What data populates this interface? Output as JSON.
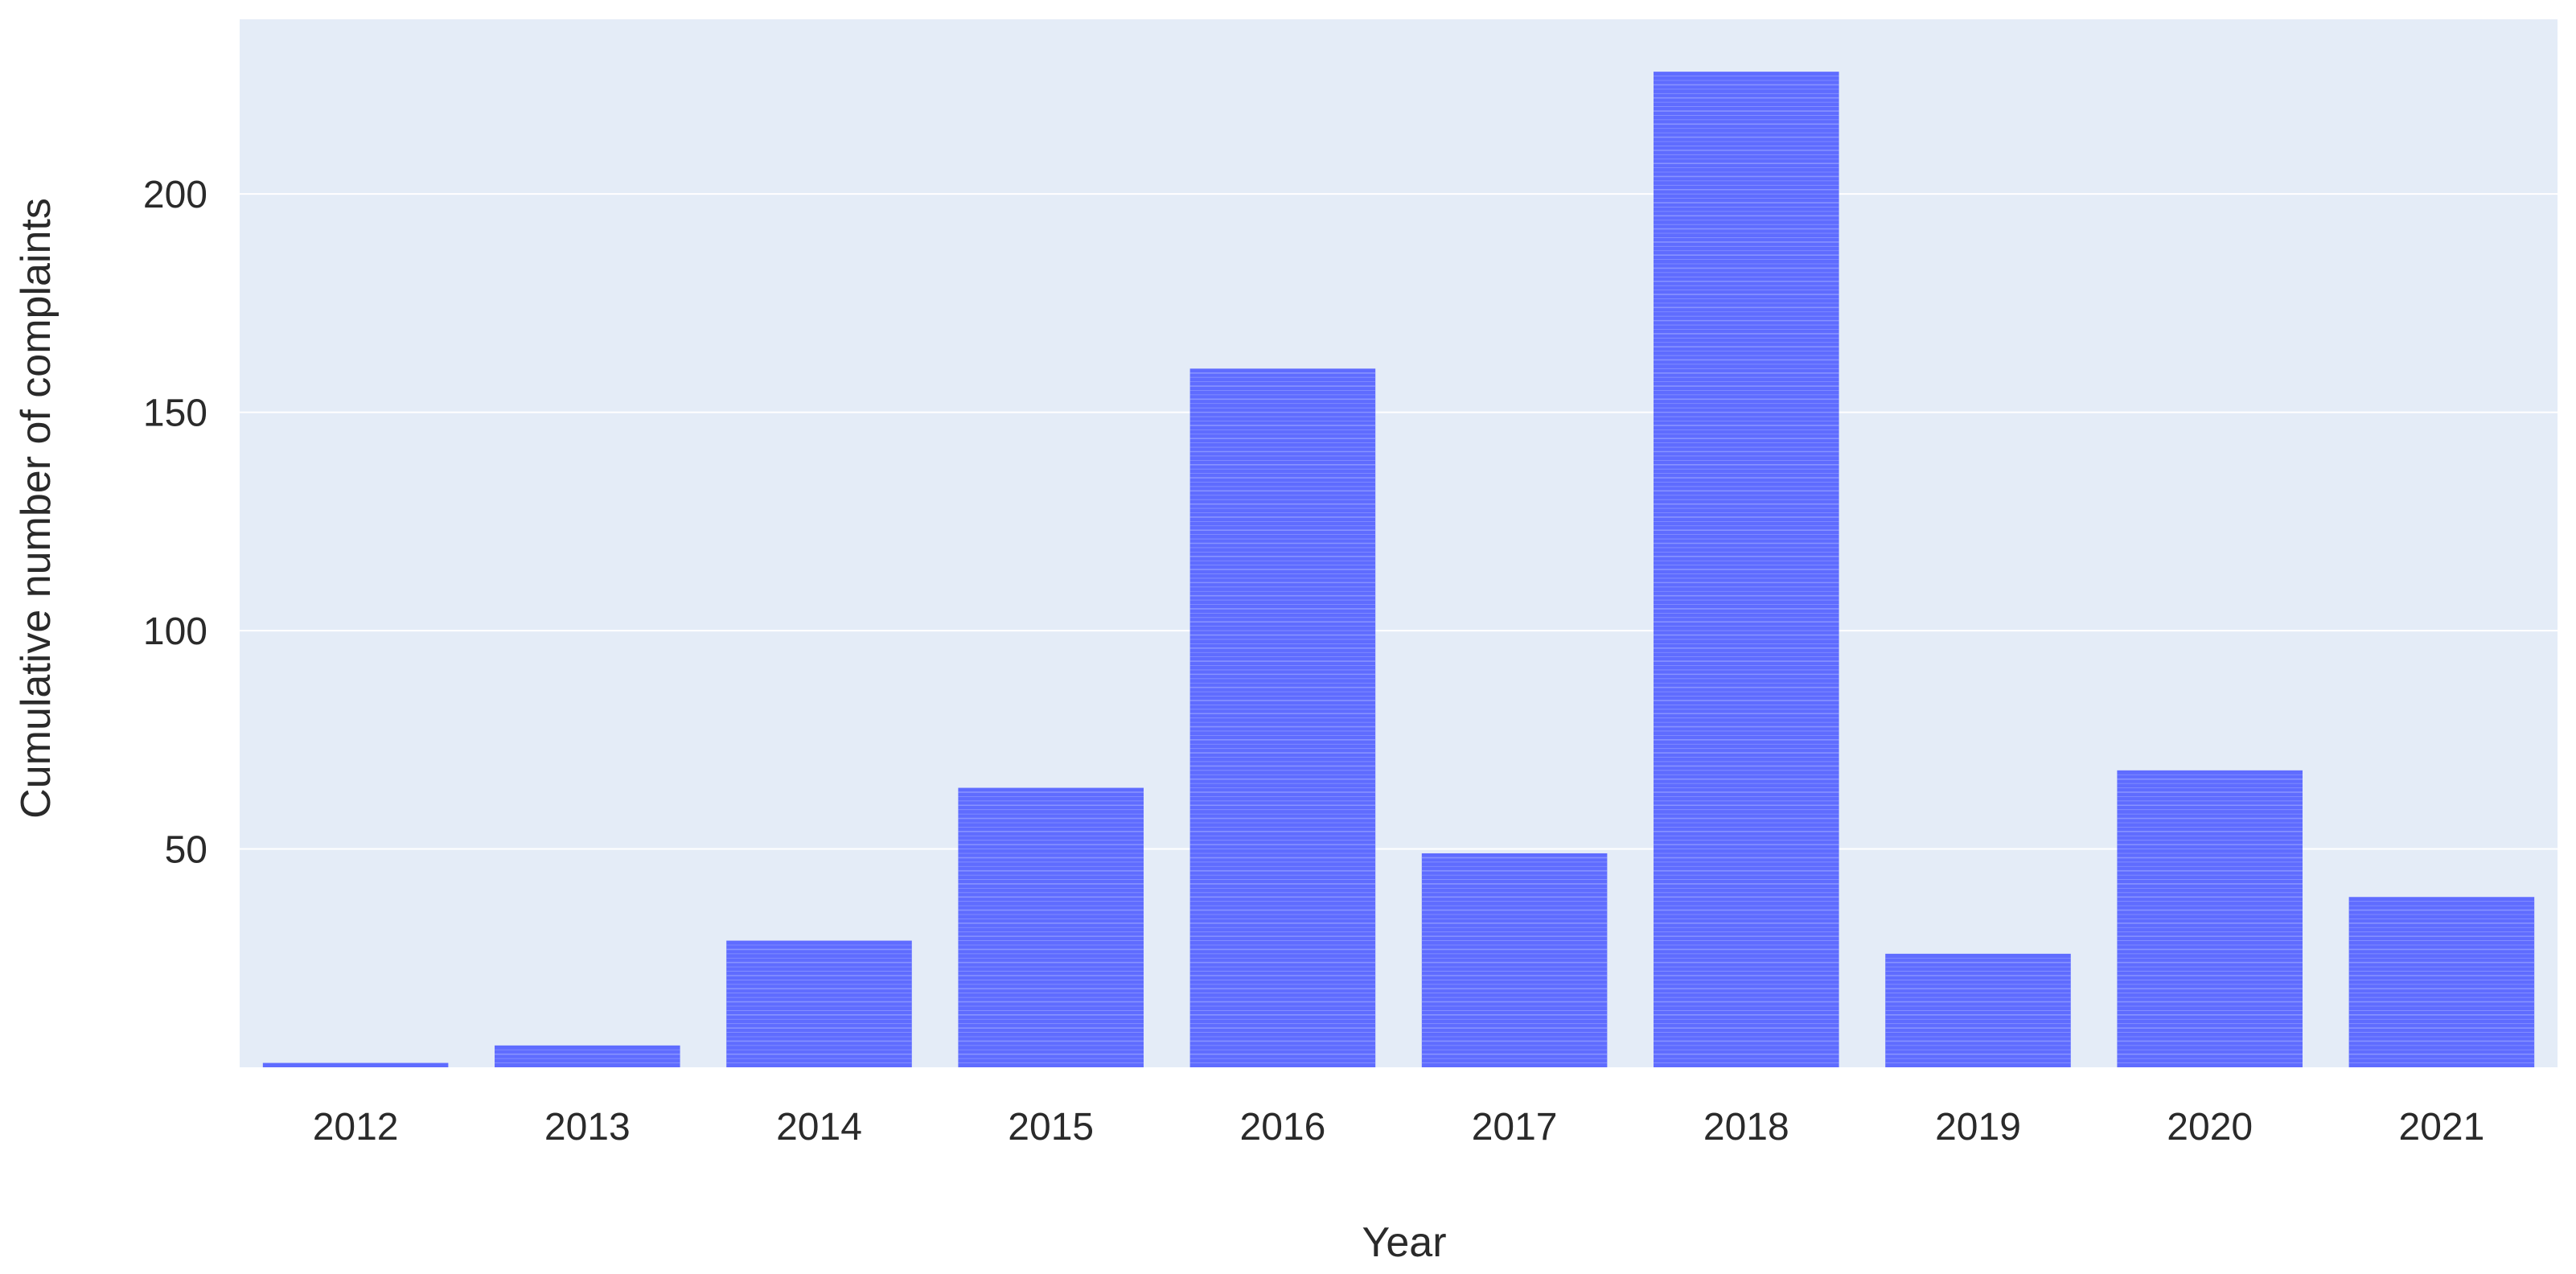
{
  "chart_data": {
    "type": "bar",
    "title": "",
    "xlabel": "Year",
    "ylabel": "Cumulative number of complaints",
    "categories": [
      "2012",
      "2013",
      "2014",
      "2015",
      "2016",
      "2017",
      "2018",
      "2019",
      "2020",
      "2021"
    ],
    "values": [
      1,
      5,
      29,
      64,
      160,
      49,
      228,
      26,
      68,
      39
    ],
    "ylim": [
      0,
      240
    ],
    "yticks": [
      50,
      100,
      150,
      200
    ],
    "grid": true,
    "legend": "none",
    "colors": {
      "background": "#e4ecf7",
      "bar": "#5f6cff",
      "bar_stripe": "#9aa4ff",
      "grid": "#ffffff"
    }
  }
}
